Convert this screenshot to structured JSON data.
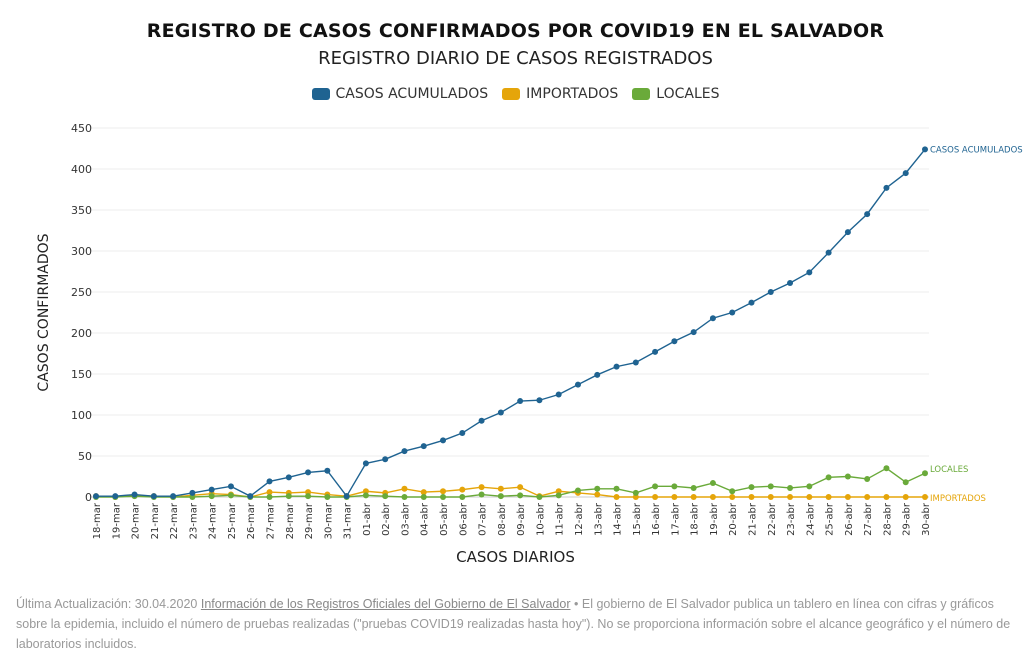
{
  "chart_data": {
    "type": "line",
    "title": "REGISTRO DE CASOS CONFIRMADOS POR COVID19 EN EL SALVADOR",
    "subtitle": "REGISTRO DIARIO DE CASOS REGISTRADOS",
    "xlabel": "CASOS DIARIOS",
    "ylabel": "CASOS CONFIRMADOS",
    "ylim": [
      0,
      450
    ],
    "yticks": [
      0,
      50,
      100,
      150,
      200,
      250,
      300,
      350,
      400,
      450
    ],
    "categories": [
      "18-mar",
      "19-mar",
      "20-mar",
      "21-mar",
      "22-mar",
      "23-mar",
      "24-mar",
      "25-mar",
      "26-mar",
      "27-mar",
      "28-mar",
      "29-mar",
      "30-mar",
      "31-mar",
      "01-abr",
      "02-abr",
      "03-abr",
      "04-abr",
      "05-abr",
      "06-abr",
      "07-abr",
      "08-abr",
      "09-abr",
      "10-abr",
      "11-abr",
      "12-abr",
      "13-abr",
      "14-abr",
      "15-abr",
      "16-abr",
      "17-abr",
      "18-abr",
      "19-abr",
      "20-abr",
      "21-abr",
      "22-abr",
      "23-abr",
      "24-abr",
      "25-abr",
      "26-abr",
      "27-abr",
      "28-abr",
      "29-abr",
      "30-abr"
    ],
    "series": [
      {
        "name": "CASOS ACUMULADOS",
        "color": "#1f6391",
        "end_label": "CASOS ACUMULADOS",
        "values": [
          1,
          1,
          3,
          1,
          1,
          5,
          9,
          13,
          1,
          19,
          24,
          30,
          32,
          1,
          41,
          46,
          56,
          62,
          69,
          78,
          93,
          103,
          117,
          118,
          125,
          137,
          149,
          159,
          164,
          177,
          190,
          201,
          218,
          225,
          237,
          250,
          261,
          274,
          298,
          323,
          345,
          377,
          395,
          424
        ]
      },
      {
        "name": "IMPORTADOS",
        "color": "#e5a50a",
        "end_label": "IMPORTADOS",
        "values": [
          1,
          0,
          2,
          1,
          0,
          2,
          4,
          3,
          0,
          6,
          5,
          6,
          3,
          1,
          7,
          5,
          10,
          6,
          7,
          9,
          12,
          10,
          12,
          1,
          7,
          5,
          3,
          0,
          0,
          0,
          0,
          0,
          0,
          0,
          0,
          0,
          0,
          0,
          0,
          0,
          0,
          0,
          0,
          0
        ]
      },
      {
        "name": "LOCALES",
        "color": "#6aaa3a",
        "end_label": "LOCALES",
        "values": [
          0,
          0,
          1,
          0,
          0,
          0,
          1,
          2,
          0,
          0,
          1,
          1,
          0,
          0,
          2,
          1,
          0,
          0,
          0,
          0,
          3,
          1,
          2,
          0,
          2,
          8,
          10,
          10,
          5,
          13,
          13,
          11,
          17,
          7,
          12,
          13,
          11,
          13,
          24,
          25,
          22,
          35,
          18,
          29
        ]
      }
    ]
  },
  "footer": {
    "prefix": "Última Actualización: 30.04.2020",
    "link": "Información de los Registros Oficiales del Gobierno de El Salvador",
    "bullet": "•",
    "text": "El gobierno de El Salvador publica un tablero en línea con cifras y gráficos sobre la epidemia, incluido el número de pruebas realizadas (\"pruebas COVID19 realizadas hasta hoy\"). No se proporciona información sobre el alcance geográfico y el número de laboratorios incluidos."
  }
}
